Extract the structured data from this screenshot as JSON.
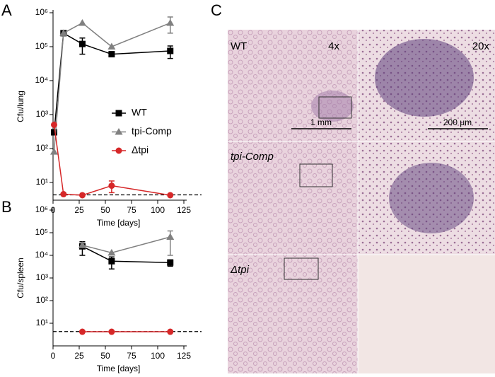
{
  "chart_data": [
    {
      "type": "line",
      "label": "A",
      "ylabel": "Cfu/lung",
      "xlabel": "Time [days]",
      "log_y": true,
      "xlim": [
        0,
        125
      ],
      "xticks": [
        0,
        25,
        50,
        75,
        100,
        125
      ],
      "ylim": [
        3,
        1000000
      ],
      "yticks": [
        {
          "value": 10,
          "label": "10¹"
        },
        {
          "value": 100,
          "label": "10²"
        },
        {
          "value": 1000,
          "label": "10³"
        },
        {
          "value": 10000,
          "label": "10⁴"
        },
        {
          "value": 100000,
          "label": "10⁵"
        },
        {
          "value": 1000000,
          "label": "10⁶"
        }
      ],
      "hline": 4.3,
      "legend": "center-right",
      "series": [
        {
          "name": "WT",
          "color": "#000000",
          "marker": "square",
          "x": [
            1,
            10,
            28,
            56,
            112
          ],
          "values": [
            300,
            250000,
            120000,
            60000,
            75000
          ],
          "errors": [
            null,
            null,
            60000,
            null,
            30000
          ]
        },
        {
          "name": "tpi-Comp",
          "color": "#808080",
          "marker": "triangle",
          "x": [
            1,
            10,
            28,
            56,
            112
          ],
          "values": [
            80,
            250000,
            500000,
            100000,
            500000
          ],
          "errors": [
            null,
            null,
            null,
            null,
            250000
          ]
        },
        {
          "name": "Δtpi",
          "color": "#d62728",
          "marker": "circle",
          "x": [
            1,
            10,
            28,
            56,
            112
          ],
          "values": [
            500,
            4.5,
            4.2,
            8,
            4.2
          ],
          "errors": [
            null,
            null,
            null,
            3,
            null
          ]
        }
      ]
    },
    {
      "type": "line",
      "label": "B",
      "ylabel": "Cfu/spleen",
      "xlabel": "Time [days]",
      "log_y": true,
      "xlim": [
        0,
        125
      ],
      "xticks": [
        0,
        25,
        50,
        75,
        100,
        125
      ],
      "ylim": [
        1,
        1000000
      ],
      "yticks": [
        {
          "value": 10,
          "label": "10¹"
        },
        {
          "value": 100,
          "label": "10²"
        },
        {
          "value": 1000,
          "label": "10³"
        },
        {
          "value": 10000,
          "label": "10⁴"
        },
        {
          "value": 100000,
          "label": "10⁵"
        },
        {
          "value": 1000000,
          "label": "10⁶"
        }
      ],
      "hline": 4.3,
      "series": [
        {
          "color": "#000000",
          "marker": "square",
          "x": [
            28,
            56,
            112
          ],
          "values": [
            25000,
            5500,
            4800
          ],
          "errors": [
            15000,
            3000,
            1500
          ]
        },
        {
          "color": "#808080",
          "marker": "triangle",
          "x": [
            28,
            56,
            112
          ],
          "values": [
            28000,
            13000,
            65000
          ],
          "errors": [
            null,
            null,
            55000
          ]
        },
        {
          "color": "#d62728",
          "marker": "circle",
          "x": [
            28,
            56,
            112
          ],
          "values": [
            4.2,
            4.2,
            4.2
          ],
          "errors": [
            null,
            null,
            null
          ]
        }
      ]
    }
  ],
  "panel_c": {
    "label": "C",
    "magnifications": [
      "4x",
      "20x"
    ],
    "scale_bars": [
      "1 mm",
      "200 μm"
    ],
    "rows": [
      "WT",
      "tpi-Comp",
      "Δtpi"
    ]
  }
}
